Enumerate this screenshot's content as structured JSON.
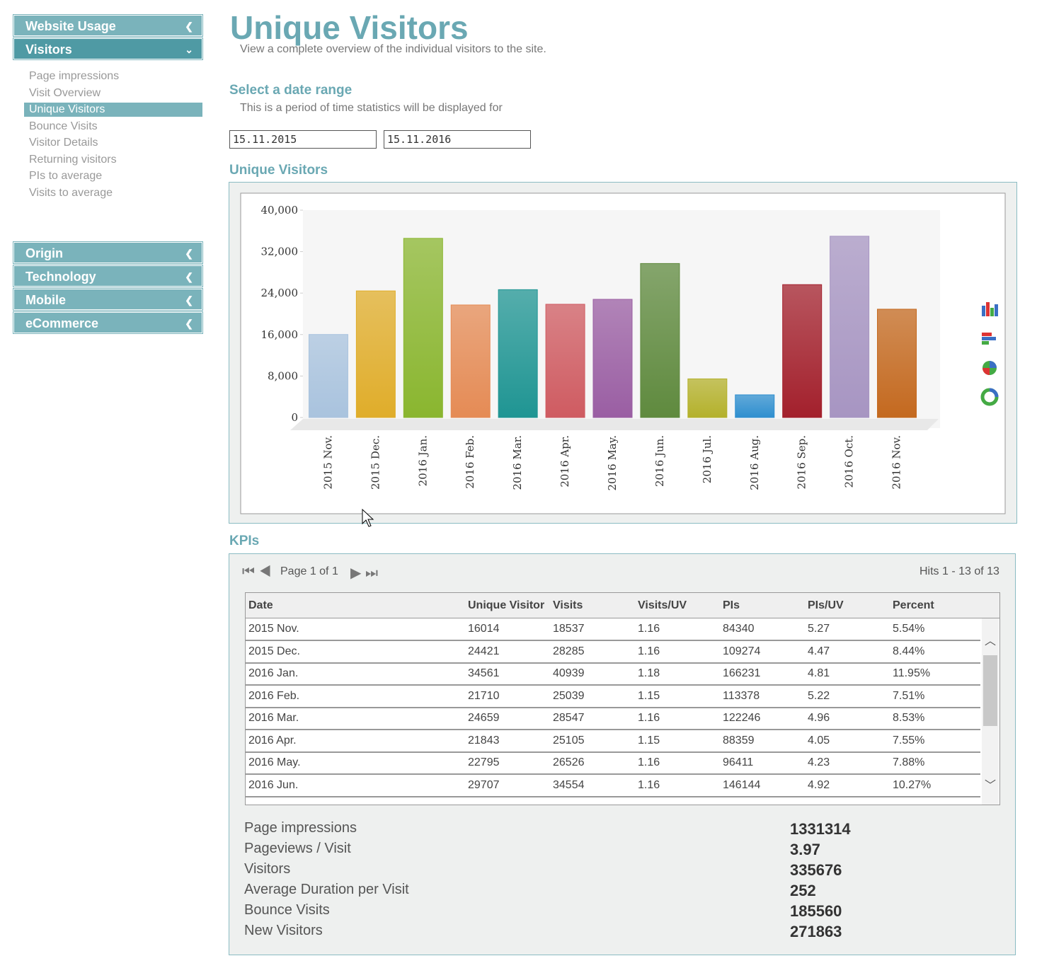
{
  "sidebar": {
    "top": [
      "Website Usage",
      "Visitors"
    ],
    "items": [
      "Page impressions",
      "Visit Overview",
      "Unique Visitors",
      "Bounce Visits",
      "Visitor Details",
      "Returning visitors",
      "PIs to average",
      "Visits to average"
    ],
    "bottom": [
      "Origin",
      "Technology",
      "Mobile",
      "eCommerce"
    ]
  },
  "header": {
    "title": "Unique Visitors",
    "subtitle": "View a complete overview of the individual visitors to the site."
  },
  "date_range": {
    "heading": "Select a date range",
    "description": "This is a period of time statistics will be displayed for",
    "from": "15.11.2015",
    "to": "15.11.2016"
  },
  "chart_data": {
    "type": "bar",
    "title": "Unique Visitors",
    "categories": [
      "2015 Nov.",
      "2015 Dec.",
      "2016 Jan.",
      "2016 Feb.",
      "2016 Mar.",
      "2016 Apr.",
      "2016 May.",
      "2016 Jun.",
      "2016 Jul.",
      "2016 Aug.",
      "2016 Sep.",
      "2016 Oct.",
      "2016 Nov."
    ],
    "values": [
      16014,
      24421,
      34561,
      21710,
      24659,
      21843,
      22795,
      29707,
      7450,
      4370,
      25630,
      34970,
      20890
    ],
    "colors": [
      "#a9c3de",
      "#e0ad2a",
      "#8ab62f",
      "#e58b55",
      "#1f9593",
      "#cf5b61",
      "#9a5ea3",
      "#5f8a3e",
      "#b4b12b",
      "#2f8fcf",
      "#a3202c",
      "#a795c2",
      "#c4691f"
    ],
    "ylim": [
      0,
      40000
    ],
    "yticks": [
      0,
      {
        "value": 8000,
        "label": "8,000"
      },
      {
        "value": 16000,
        "label": "16,000"
      },
      {
        "value": 24000,
        "label": "24,000"
      },
      {
        "value": 32000,
        "label": "32,000"
      },
      {
        "value": 40000,
        "label": "40,000"
      }
    ]
  },
  "kpis": {
    "heading": "KPIs",
    "pager": "Page 1 of 1",
    "hits": "Hits 1 - 13 of 13",
    "table": {
      "columns": [
        "Date",
        "Unique Visitor",
        "Visits",
        "Visits/UV",
        "PIs",
        "PIs/UV",
        "Percent"
      ],
      "rows": [
        [
          "2015 Nov.",
          "16014",
          "18537",
          "1.16",
          "84340",
          "5.27",
          "5.54%"
        ],
        [
          "2015 Dec.",
          "24421",
          "28285",
          "1.16",
          "109274",
          "4.47",
          "8.44%"
        ],
        [
          "2016 Jan.",
          "34561",
          "40939",
          "1.18",
          "166231",
          "4.81",
          "11.95%"
        ],
        [
          "2016 Feb.",
          "21710",
          "25039",
          "1.15",
          "113378",
          "5.22",
          "7.51%"
        ],
        [
          "2016 Mar.",
          "24659",
          "28547",
          "1.16",
          "122246",
          "4.96",
          "8.53%"
        ],
        [
          "2016 Apr.",
          "21843",
          "25105",
          "1.15",
          "88359",
          "4.05",
          "7.55%"
        ],
        [
          "2016 May.",
          "22795",
          "26526",
          "1.16",
          "96411",
          "4.23",
          "7.88%"
        ],
        [
          "2016 Jun.",
          "29707",
          "34554",
          "1.16",
          "146144",
          "4.92",
          "10.27%"
        ]
      ]
    },
    "summary": [
      {
        "label": "Page impressions",
        "value": "1331314"
      },
      {
        "label": "Pageviews / Visit",
        "value": "3.97"
      },
      {
        "label": "Visitors",
        "value": "335676"
      },
      {
        "label": "Average Duration per Visit",
        "value": "252"
      },
      {
        "label": "Bounce Visits",
        "value": "185560"
      },
      {
        "label": "New Visitors",
        "value": "271863"
      }
    ]
  }
}
